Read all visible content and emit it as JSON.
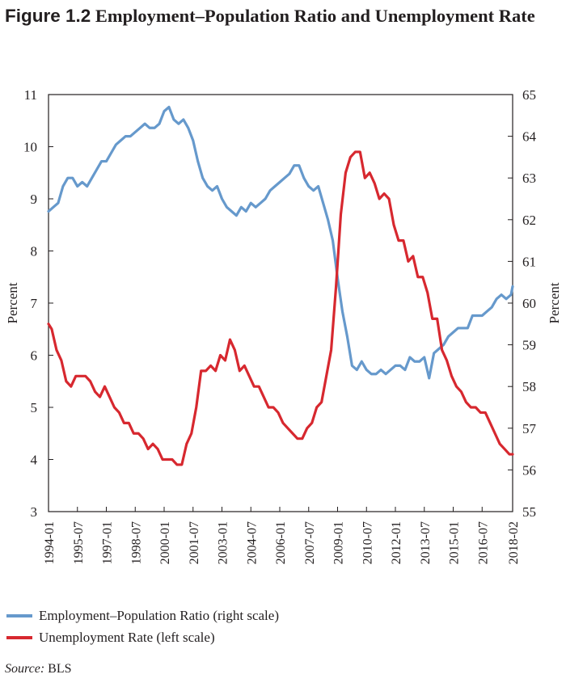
{
  "figure": {
    "label": "Figure 1.2",
    "title": "Employment–Population Ratio and Unemployment Rate"
  },
  "legend": [
    {
      "label": "Employment–Population Ratio (right scale)",
      "color": "#6699cc"
    },
    {
      "label": "Unemployment Rate (left scale)",
      "color": "#d7282f"
    }
  ],
  "source": {
    "label": "Source:",
    "text": "BLS"
  },
  "chart_data": {
    "type": "line",
    "title": "Employment–Population Ratio and Unemployment Rate",
    "x_tick_labels": [
      "1994-01",
      "1995-07",
      "1997-01",
      "1998-07",
      "2000-01",
      "2001-07",
      "2003-01",
      "2004-07",
      "2006-01",
      "2007-07",
      "2009-01",
      "2010-07",
      "2012-01",
      "2013-07",
      "2015-01",
      "2016-07",
      "2018-02"
    ],
    "x_range": [
      "1994-01",
      "2018-02"
    ],
    "y_left": {
      "label": "Percent",
      "range": [
        3,
        11
      ],
      "ticks": [
        3,
        4,
        5,
        6,
        7,
        8,
        9,
        10,
        11
      ]
    },
    "y_right": {
      "label": "Percent",
      "range": [
        55,
        65
      ],
      "ticks": [
        55,
        56,
        57,
        58,
        59,
        60,
        61,
        62,
        63,
        64,
        65
      ]
    },
    "grid": false,
    "legend_position": "bottom",
    "series": [
      {
        "name": "Employment–Population Ratio (right scale)",
        "axis": "right",
        "color": "#6699cc",
        "points": [
          [
            "1994-01",
            62.2
          ],
          [
            "1994-04",
            62.3
          ],
          [
            "1994-07",
            62.4
          ],
          [
            "1994-10",
            62.8
          ],
          [
            "1995-01",
            63.0
          ],
          [
            "1995-04",
            63.0
          ],
          [
            "1995-07",
            62.8
          ],
          [
            "1995-10",
            62.9
          ],
          [
            "1996-01",
            62.8
          ],
          [
            "1996-04",
            63.0
          ],
          [
            "1996-07",
            63.2
          ],
          [
            "1996-10",
            63.4
          ],
          [
            "1997-01",
            63.4
          ],
          [
            "1997-04",
            63.6
          ],
          [
            "1997-07",
            63.8
          ],
          [
            "1997-10",
            63.9
          ],
          [
            "1998-01",
            64.0
          ],
          [
            "1998-04",
            64.0
          ],
          [
            "1998-07",
            64.1
          ],
          [
            "1998-10",
            64.2
          ],
          [
            "1999-01",
            64.3
          ],
          [
            "1999-04",
            64.2
          ],
          [
            "1999-07",
            64.2
          ],
          [
            "1999-10",
            64.3
          ],
          [
            "2000-01",
            64.6
          ],
          [
            "2000-04",
            64.7
          ],
          [
            "2000-07",
            64.4
          ],
          [
            "2000-10",
            64.3
          ],
          [
            "2001-01",
            64.4
          ],
          [
            "2001-04",
            64.2
          ],
          [
            "2001-07",
            63.9
          ],
          [
            "2001-10",
            63.4
          ],
          [
            "2002-01",
            63.0
          ],
          [
            "2002-04",
            62.8
          ],
          [
            "2002-07",
            62.7
          ],
          [
            "2002-10",
            62.8
          ],
          [
            "2003-01",
            62.5
          ],
          [
            "2003-04",
            62.3
          ],
          [
            "2003-07",
            62.2
          ],
          [
            "2003-10",
            62.1
          ],
          [
            "2004-01",
            62.3
          ],
          [
            "2004-04",
            62.2
          ],
          [
            "2004-07",
            62.4
          ],
          [
            "2004-10",
            62.3
          ],
          [
            "2005-01",
            62.4
          ],
          [
            "2005-04",
            62.5
          ],
          [
            "2005-07",
            62.7
          ],
          [
            "2005-10",
            62.8
          ],
          [
            "2006-01",
            62.9
          ],
          [
            "2006-04",
            63.0
          ],
          [
            "2006-07",
            63.1
          ],
          [
            "2006-10",
            63.3
          ],
          [
            "2007-01",
            63.3
          ],
          [
            "2007-04",
            63.0
          ],
          [
            "2007-07",
            62.8
          ],
          [
            "2007-10",
            62.7
          ],
          [
            "2008-01",
            62.8
          ],
          [
            "2008-04",
            62.4
          ],
          [
            "2008-07",
            62.0
          ],
          [
            "2008-10",
            61.5
          ],
          [
            "2009-01",
            60.6
          ],
          [
            "2009-04",
            59.8
          ],
          [
            "2009-07",
            59.2
          ],
          [
            "2009-10",
            58.5
          ],
          [
            "2010-01",
            58.4
          ],
          [
            "2010-04",
            58.6
          ],
          [
            "2010-07",
            58.4
          ],
          [
            "2010-10",
            58.3
          ],
          [
            "2011-01",
            58.3
          ],
          [
            "2011-04",
            58.4
          ],
          [
            "2011-07",
            58.3
          ],
          [
            "2011-10",
            58.4
          ],
          [
            "2012-01",
            58.5
          ],
          [
            "2012-04",
            58.5
          ],
          [
            "2012-07",
            58.4
          ],
          [
            "2012-10",
            58.7
          ],
          [
            "2013-01",
            58.6
          ],
          [
            "2013-04",
            58.6
          ],
          [
            "2013-07",
            58.7
          ],
          [
            "2013-10",
            58.2
          ],
          [
            "2014-01",
            58.8
          ],
          [
            "2014-04",
            58.9
          ],
          [
            "2014-07",
            59.0
          ],
          [
            "2014-10",
            59.2
          ],
          [
            "2015-01",
            59.3
          ],
          [
            "2015-04",
            59.4
          ],
          [
            "2015-07",
            59.4
          ],
          [
            "2015-10",
            59.4
          ],
          [
            "2016-01",
            59.7
          ],
          [
            "2016-04",
            59.7
          ],
          [
            "2016-07",
            59.7
          ],
          [
            "2016-10",
            59.8
          ],
          [
            "2017-01",
            59.9
          ],
          [
            "2017-04",
            60.1
          ],
          [
            "2017-07",
            60.2
          ],
          [
            "2017-10",
            60.1
          ],
          [
            "2018-01",
            60.2
          ],
          [
            "2018-02",
            60.4
          ]
        ]
      },
      {
        "name": "Unemployment Rate (left scale)",
        "axis": "left",
        "color": "#d7282f",
        "points": [
          [
            "1994-01",
            6.6
          ],
          [
            "1994-03",
            6.5
          ],
          [
            "1994-06",
            6.1
          ],
          [
            "1994-09",
            5.9
          ],
          [
            "1994-12",
            5.5
          ],
          [
            "1995-03",
            5.4
          ],
          [
            "1995-06",
            5.6
          ],
          [
            "1995-09",
            5.6
          ],
          [
            "1995-12",
            5.6
          ],
          [
            "1996-03",
            5.5
          ],
          [
            "1996-06",
            5.3
          ],
          [
            "1996-09",
            5.2
          ],
          [
            "1996-12",
            5.4
          ],
          [
            "1997-03",
            5.2
          ],
          [
            "1997-06",
            5.0
          ],
          [
            "1997-09",
            4.9
          ],
          [
            "1997-12",
            4.7
          ],
          [
            "1998-03",
            4.7
          ],
          [
            "1998-06",
            4.5
          ],
          [
            "1998-09",
            4.5
          ],
          [
            "1998-12",
            4.4
          ],
          [
            "1999-03",
            4.2
          ],
          [
            "1999-06",
            4.3
          ],
          [
            "1999-09",
            4.2
          ],
          [
            "1999-12",
            4.0
          ],
          [
            "2000-03",
            4.0
          ],
          [
            "2000-06",
            4.0
          ],
          [
            "2000-09",
            3.9
          ],
          [
            "2000-12",
            3.9
          ],
          [
            "2001-03",
            4.3
          ],
          [
            "2001-06",
            4.5
          ],
          [
            "2001-09",
            5.0
          ],
          [
            "2001-12",
            5.7
          ],
          [
            "2002-03",
            5.7
          ],
          [
            "2002-06",
            5.8
          ],
          [
            "2002-09",
            5.7
          ],
          [
            "2002-12",
            6.0
          ],
          [
            "2003-03",
            5.9
          ],
          [
            "2003-06",
            6.3
          ],
          [
            "2003-09",
            6.1
          ],
          [
            "2003-12",
            5.7
          ],
          [
            "2004-03",
            5.8
          ],
          [
            "2004-06",
            5.6
          ],
          [
            "2004-09",
            5.4
          ],
          [
            "2004-12",
            5.4
          ],
          [
            "2005-03",
            5.2
          ],
          [
            "2005-06",
            5.0
          ],
          [
            "2005-09",
            5.0
          ],
          [
            "2005-12",
            4.9
          ],
          [
            "2006-03",
            4.7
          ],
          [
            "2006-06",
            4.6
          ],
          [
            "2006-09",
            4.5
          ],
          [
            "2006-12",
            4.4
          ],
          [
            "2007-03",
            4.4
          ],
          [
            "2007-06",
            4.6
          ],
          [
            "2007-09",
            4.7
          ],
          [
            "2007-12",
            5.0
          ],
          [
            "2008-03",
            5.1
          ],
          [
            "2008-06",
            5.6
          ],
          [
            "2008-09",
            6.1
          ],
          [
            "2008-12",
            7.3
          ],
          [
            "2009-03",
            8.7
          ],
          [
            "2009-06",
            9.5
          ],
          [
            "2009-09",
            9.8
          ],
          [
            "2009-12",
            9.9
          ],
          [
            "2010-03",
            9.9
          ],
          [
            "2010-06",
            9.4
          ],
          [
            "2010-09",
            9.5
          ],
          [
            "2010-12",
            9.3
          ],
          [
            "2011-03",
            9.0
          ],
          [
            "2011-06",
            9.1
          ],
          [
            "2011-09",
            9.0
          ],
          [
            "2011-12",
            8.5
          ],
          [
            "2012-03",
            8.2
          ],
          [
            "2012-06",
            8.2
          ],
          [
            "2012-09",
            7.8
          ],
          [
            "2012-12",
            7.9
          ],
          [
            "2013-03",
            7.5
          ],
          [
            "2013-06",
            7.5
          ],
          [
            "2013-09",
            7.2
          ],
          [
            "2013-12",
            6.7
          ],
          [
            "2014-03",
            6.7
          ],
          [
            "2014-06",
            6.1
          ],
          [
            "2014-09",
            5.9
          ],
          [
            "2014-12",
            5.6
          ],
          [
            "2015-03",
            5.4
          ],
          [
            "2015-06",
            5.3
          ],
          [
            "2015-09",
            5.1
          ],
          [
            "2015-12",
            5.0
          ],
          [
            "2016-03",
            5.0
          ],
          [
            "2016-06",
            4.9
          ],
          [
            "2016-09",
            4.9
          ],
          [
            "2016-12",
            4.7
          ],
          [
            "2017-03",
            4.5
          ],
          [
            "2017-06",
            4.3
          ],
          [
            "2017-09",
            4.2
          ],
          [
            "2017-12",
            4.1
          ],
          [
            "2018-02",
            4.1
          ]
        ]
      }
    ]
  }
}
